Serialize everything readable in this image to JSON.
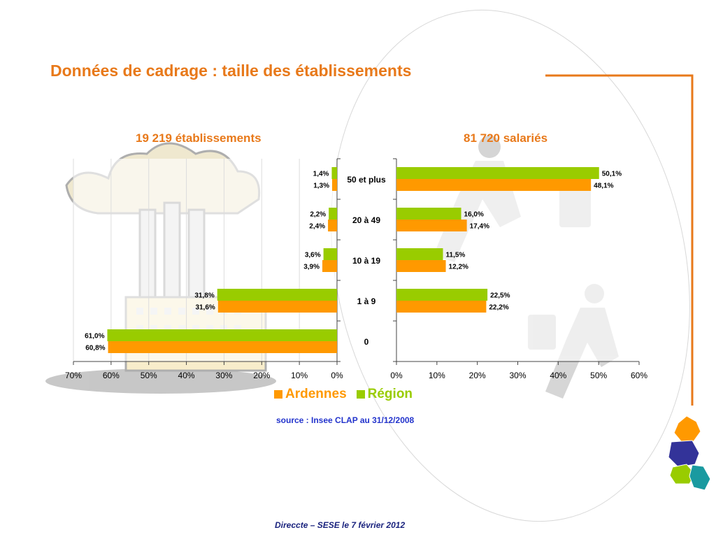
{
  "page": {
    "title": "Données de cadrage : taille  des établissements",
    "source": "source : Insee CLAP au 31/12/2008",
    "footer": "Direccte – SESE le 7 février 2012"
  },
  "colors": {
    "ardennes": "#FF9900",
    "region": "#99CC00",
    "title": "#E8791A",
    "source": "#2233CC"
  },
  "icons": [
    "factory-illustration",
    "running-businessmen-illustration",
    "region-map-logo"
  ],
  "legend": [
    {
      "name": "Ardennes",
      "color": "#FF9900"
    },
    {
      "name": "Région",
      "color": "#99CC00"
    }
  ],
  "chart_data": [
    {
      "type": "bar",
      "orientation": "horizontal-reversed",
      "title": "19 219 établissements",
      "categories": [
        "50 et plus",
        "20 à 49",
        "10 à 19",
        "1 à 9",
        "0"
      ],
      "series": [
        {
          "name": "Région",
          "values": [
            1.4,
            2.2,
            3.6,
            31.8,
            61.0
          ],
          "labels": [
            "1,4%",
            "2,2%",
            "3,6%",
            "31,8%",
            "61,0%"
          ]
        },
        {
          "name": "Ardennes",
          "values": [
            1.3,
            2.4,
            3.9,
            31.6,
            60.8
          ],
          "labels": [
            "1,3%",
            "2,4%",
            "3,9%",
            "31,6%",
            "60,8%"
          ]
        }
      ],
      "xlim": [
        0,
        70
      ],
      "ticks": [
        "0%",
        "10%",
        "20%",
        "30%",
        "40%",
        "50%",
        "60%",
        "70%"
      ],
      "grid": true
    },
    {
      "type": "bar",
      "orientation": "horizontal",
      "title": "81 720 salariés",
      "categories": [
        "50 et plus",
        "20 à 49",
        "10 à 19",
        "1 à 9",
        "0"
      ],
      "series": [
        {
          "name": "Région",
          "values": [
            50.1,
            16.0,
            11.5,
            22.5,
            null
          ],
          "labels": [
            "50,1%",
            "16,0%",
            "11,5%",
            "22,5%",
            ""
          ]
        },
        {
          "name": "Ardennes",
          "values": [
            48.1,
            17.4,
            12.2,
            22.2,
            null
          ],
          "labels": [
            "48,1%",
            "17,4%",
            "12,2%",
            "22,2%",
            ""
          ]
        }
      ],
      "xlim": [
        0,
        60
      ],
      "ticks": [
        "0%",
        "10%",
        "20%",
        "30%",
        "40%",
        "50%",
        "60%"
      ],
      "grid": false
    }
  ]
}
